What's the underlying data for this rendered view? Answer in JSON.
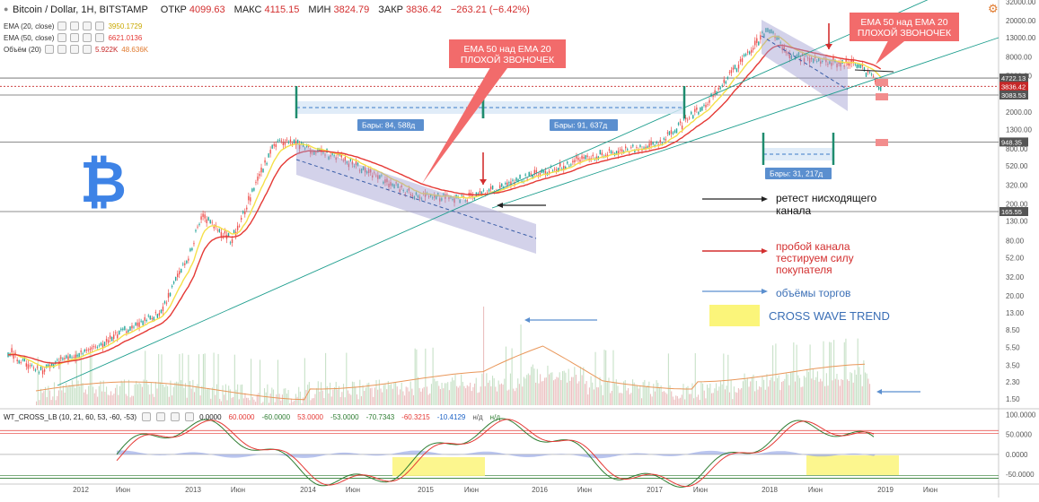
{
  "header": {
    "symbol": "Bitcoin / Dollar, 1Н, BITSTAMP",
    "open_label": "ОТКР",
    "open": "4099.63",
    "high_label": "МАКС",
    "high": "4115.15",
    "low_label": "МИН",
    "low": "3824.79",
    "close_label": "ЗАКР",
    "close": "3836.42",
    "change": "−263.21 (−6.42%)"
  },
  "indicators": [
    {
      "label": "EMA (20, close)",
      "value": "3950.1729",
      "color": "#d4b800"
    },
    {
      "label": "EMA (50, close)",
      "value": "6621.0136",
      "color": "#e53935"
    },
    {
      "label": "Объём (20)",
      "value": "5.922K",
      "value2": "48.636K",
      "color": "#e07a2e"
    }
  ],
  "wt": {
    "label": "WT_CROSS_LB (10, 21, 60, 53, -60, -53)",
    "values": [
      "0.0000",
      "60.0000",
      "-60.0000",
      "53.0000",
      "-53.0000",
      "-70.7343",
      "-60.3215",
      "-10.4129",
      "н/д",
      "н/д"
    ],
    "colors": [
      "#222",
      "#e53935",
      "#2e7d32",
      "#e53935",
      "#2e7d32",
      "#2e7d32",
      "#e53935",
      "#1e63c6",
      "#555",
      "#2e7d32"
    ]
  },
  "price_axis": [
    "32000.00",
    "20000.00",
    "13000.00",
    "8000.00",
    "5000.00",
    "2000.00",
    "1300.00",
    "800.00",
    "520.00",
    "320.00",
    "200.00",
    "130.00",
    "80.00",
    "52.00",
    "32.00",
    "20.00",
    "13.00",
    "8.50",
    "5.50",
    "3.50",
    "2.30",
    "1.50"
  ],
  "price_tags": [
    {
      "text": "4722.13",
      "value": 4722.13,
      "color": "#555555"
    },
    {
      "text": "3836.42",
      "value": 3836.42,
      "color": "#c62828"
    },
    {
      "text": "3083.53",
      "value": 3083.53,
      "color": "#555555"
    },
    {
      "text": "948.35",
      "value": 948.35,
      "color": "#555555"
    },
    {
      "text": "165.55",
      "value": 165.55,
      "color": "#555555"
    }
  ],
  "osc_axis": [
    "100.0000",
    "50.0000",
    "0.0000",
    "-50.0000"
  ],
  "time_axis": [
    "2012",
    "Июн",
    "2013",
    "Июн",
    "2014",
    "Июн",
    "2015",
    "Июн",
    "2016",
    "Июн",
    "2017",
    "Июн",
    "2018",
    "Июн",
    "2019",
    "Июн"
  ],
  "annotations": {
    "callout1": "EMA 50 над EMA 20\nПЛОХОЙ ЗВОНОЧЕК",
    "callout2": "EMA 50 над EMA 20\nПЛОХОЙ ЗВОНОЧЕК",
    "bars1": "Бары: 84, 588д",
    "bars2": "Бары: 91, 637д",
    "bars3": "Бары: 31, 217д",
    "legend_black": "ретест нисходящего\nканала",
    "legend_red": "пробой канала\nтестируем силу\nпокупателя",
    "legend_blue": "объёмы торгов",
    "legend_yellow": "CROSS WAVE TREND"
  },
  "chart_data": {
    "type": "line",
    "title": "Bitcoin / Dollar, 1Н, BITSTAMP",
    "log_scale": true,
    "ylim": [
      1.2,
      32000
    ],
    "x": [
      "2011-09",
      "2011-12",
      "2012-06",
      "2012-12",
      "2013-03",
      "2013-04",
      "2013-07",
      "2013-11",
      "2013-12",
      "2014-06",
      "2015-01",
      "2015-06",
      "2015-11",
      "2016-06",
      "2017-01",
      "2017-06",
      "2017-12",
      "2018-02",
      "2018-06",
      "2018-09",
      "2018-11"
    ],
    "series": [
      {
        "values": [
          5,
          3,
          6,
          13,
          60,
          150,
          80,
          800,
          1000,
          620,
          250,
          230,
          350,
          650,
          900,
          2600,
          17000,
          8500,
          7000,
          6500,
          3836
        ]
      }
    ],
    "volume_ylim": [
      0,
      1
    ],
    "oscillator_ylim": [
      -70,
      110
    ]
  }
}
